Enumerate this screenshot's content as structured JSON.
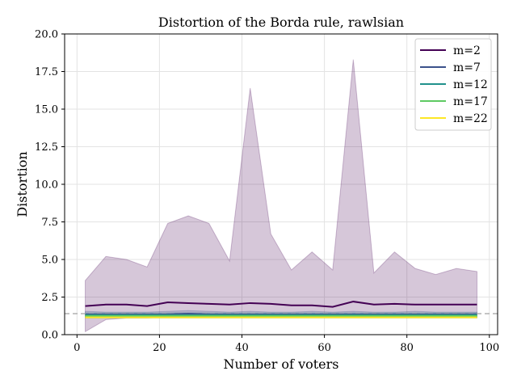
{
  "chart_data": {
    "type": "line",
    "title": "Distortion of the Borda rule, rawlsian",
    "xlabel": "Number of voters",
    "ylabel": "Distortion",
    "xlim": [
      -3,
      102
    ],
    "ylim": [
      0,
      20
    ],
    "xticks": [
      0,
      20,
      40,
      60,
      80,
      100
    ],
    "yticks": [
      0.0,
      2.5,
      5.0,
      7.5,
      10.0,
      12.5,
      15.0,
      17.5,
      20.0
    ],
    "ytick_labels": [
      "0.0",
      "2.5",
      "5.0",
      "7.5",
      "10.0",
      "12.5",
      "15.0",
      "17.5",
      "20.0"
    ],
    "grid": true,
    "legend_position": "top-right",
    "reference_line": {
      "y": 1.4,
      "style": "dashed",
      "color": "#b0b0b0"
    },
    "x": [
      2,
      7,
      12,
      17,
      22,
      27,
      32,
      37,
      42,
      47,
      52,
      57,
      62,
      67,
      72,
      77,
      82,
      87,
      92,
      97
    ],
    "series": [
      {
        "name": "m=2",
        "color": "#440154",
        "values": [
          1.9,
          2.0,
          2.0,
          1.9,
          2.15,
          2.1,
          2.05,
          2.0,
          2.1,
          2.05,
          1.95,
          1.95,
          1.85,
          2.2,
          2.0,
          2.05,
          2.0,
          2.0,
          2.0,
          2.0
        ],
        "band_lower": [
          0.2,
          1.0,
          1.1,
          1.1,
          1.2,
          1.2,
          1.2,
          1.2,
          1.2,
          1.2,
          1.2,
          1.2,
          1.2,
          1.2,
          1.2,
          1.2,
          1.2,
          1.2,
          1.2,
          1.2
        ],
        "band_upper": [
          3.6,
          5.2,
          5.0,
          4.5,
          7.4,
          7.9,
          7.4,
          4.9,
          16.4,
          6.7,
          4.3,
          5.5,
          4.3,
          18.3,
          4.1,
          5.5,
          4.4,
          4.0,
          4.4,
          4.2
        ]
      },
      {
        "name": "m=7",
        "color": "#3b528b",
        "values": [
          1.35,
          1.35,
          1.35,
          1.35,
          1.35,
          1.4,
          1.35,
          1.35,
          1.35,
          1.35,
          1.35,
          1.35,
          1.35,
          1.35,
          1.35,
          1.35,
          1.35,
          1.35,
          1.35,
          1.35
        ],
        "band_lower": [
          1.1,
          1.1,
          1.1,
          1.1,
          1.1,
          1.1,
          1.1,
          1.1,
          1.1,
          1.1,
          1.1,
          1.1,
          1.1,
          1.1,
          1.1,
          1.1,
          1.1,
          1.1,
          1.1,
          1.1
        ],
        "band_upper": [
          1.55,
          1.5,
          1.5,
          1.5,
          1.55,
          1.6,
          1.55,
          1.5,
          1.55,
          1.5,
          1.5,
          1.55,
          1.5,
          1.55,
          1.5,
          1.5,
          1.55,
          1.5,
          1.5,
          1.5
        ]
      },
      {
        "name": "m=12",
        "color": "#21918c",
        "values": [
          1.3,
          1.3,
          1.3,
          1.3,
          1.3,
          1.3,
          1.3,
          1.3,
          1.3,
          1.3,
          1.3,
          1.3,
          1.3,
          1.3,
          1.3,
          1.3,
          1.3,
          1.3,
          1.3,
          1.3
        ],
        "band_lower": [
          1.15,
          1.15,
          1.15,
          1.15,
          1.15,
          1.15,
          1.15,
          1.15,
          1.15,
          1.15,
          1.15,
          1.15,
          1.15,
          1.15,
          1.15,
          1.15,
          1.15,
          1.15,
          1.15,
          1.15
        ],
        "band_upper": [
          1.45,
          1.45,
          1.45,
          1.45,
          1.45,
          1.45,
          1.45,
          1.45,
          1.45,
          1.45,
          1.45,
          1.45,
          1.45,
          1.45,
          1.45,
          1.45,
          1.45,
          1.45,
          1.45,
          1.45
        ]
      },
      {
        "name": "m=17",
        "color": "#5ec962",
        "values": [
          1.25,
          1.25,
          1.25,
          1.25,
          1.25,
          1.25,
          1.25,
          1.25,
          1.25,
          1.25,
          1.25,
          1.25,
          1.25,
          1.25,
          1.25,
          1.25,
          1.25,
          1.25,
          1.25,
          1.25
        ],
        "band_lower": [
          1.15,
          1.15,
          1.15,
          1.15,
          1.15,
          1.15,
          1.15,
          1.15,
          1.15,
          1.15,
          1.15,
          1.15,
          1.15,
          1.15,
          1.15,
          1.15,
          1.15,
          1.15,
          1.15,
          1.15
        ],
        "band_upper": [
          1.35,
          1.35,
          1.35,
          1.35,
          1.35,
          1.35,
          1.35,
          1.35,
          1.35,
          1.35,
          1.35,
          1.35,
          1.35,
          1.35,
          1.35,
          1.35,
          1.35,
          1.35,
          1.35,
          1.35
        ]
      },
      {
        "name": "m=22",
        "color": "#fde725",
        "values": [
          1.15,
          1.15,
          1.15,
          1.15,
          1.15,
          1.15,
          1.15,
          1.15,
          1.15,
          1.15,
          1.15,
          1.15,
          1.15,
          1.15,
          1.15,
          1.15,
          1.15,
          1.15,
          1.15,
          1.15
        ],
        "band_lower": [
          1.1,
          1.1,
          1.1,
          1.1,
          1.1,
          1.1,
          1.1,
          1.1,
          1.1,
          1.1,
          1.1,
          1.1,
          1.1,
          1.1,
          1.1,
          1.1,
          1.1,
          1.1,
          1.1,
          1.1
        ],
        "band_upper": [
          1.2,
          1.2,
          1.2,
          1.2,
          1.2,
          1.2,
          1.2,
          1.2,
          1.2,
          1.2,
          1.2,
          1.2,
          1.2,
          1.2,
          1.2,
          1.2,
          1.2,
          1.2,
          1.2,
          1.2
        ]
      }
    ]
  }
}
